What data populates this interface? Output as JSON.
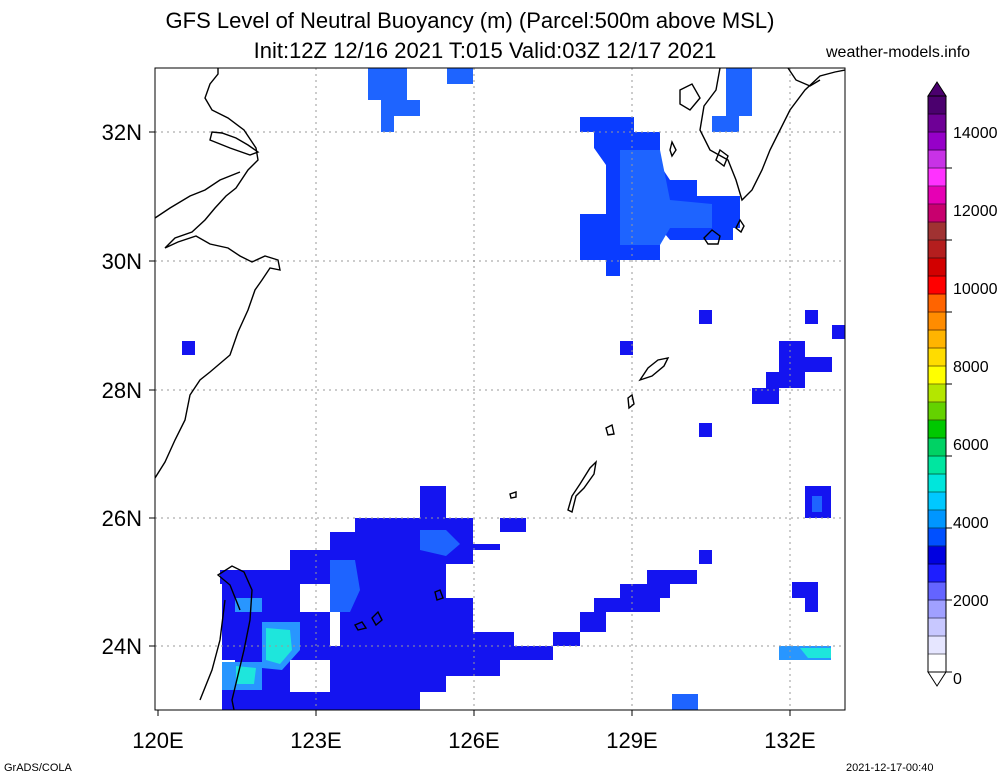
{
  "title": {
    "line1": "GFS Level of Neutral Buoyancy (m) (Parcel:500m above MSL)",
    "line2": "Init:12Z 12/16 2021 T:015 Valid:03Z 12/17 2021"
  },
  "brand": "weather-models.info",
  "footer": {
    "left": "GrADS/COLA",
    "right": "2021-12-17-00:40"
  },
  "axes": {
    "lon_labels": [
      "120E",
      "123E",
      "126E",
      "129E",
      "132E"
    ],
    "lat_labels": [
      "24N",
      "26N",
      "28N",
      "30N",
      "32N"
    ]
  },
  "colorbar": {
    "labels": [
      "0",
      "2000",
      "4000",
      "6000",
      "8000",
      "10000",
      "12000",
      "14000"
    ],
    "colors": [
      "#ffffff",
      "#e6e6ff",
      "#c8c8ff",
      "#a0a0ff",
      "#6464ff",
      "#1e1eff",
      "#0000e0",
      "#0050ff",
      "#0096ff",
      "#00c8ff",
      "#00e6dc",
      "#00e6a0",
      "#00d264",
      "#00c800",
      "#64d200",
      "#b4e600",
      "#ffff00",
      "#ffdc00",
      "#ffb400",
      "#ff8c00",
      "#ff6400",
      "#ff0000",
      "#d20000",
      "#b41e1e",
      "#a03232",
      "#c8006e",
      "#e600b4",
      "#ff32ff",
      "#c832e6",
      "#9600c8",
      "#6e0096",
      "#4b006e"
    ]
  },
  "palette": {
    "deep_blue": "#1414f0",
    "blue": "#0a3cff",
    "mid_blue": "#1e64ff",
    "light_blue": "#2896ff",
    "cyan": "#1ee6dc",
    "coast": "#000000"
  }
}
